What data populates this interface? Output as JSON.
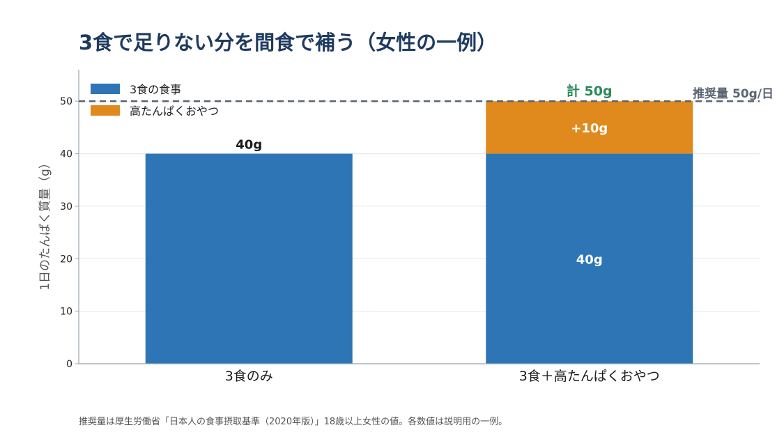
{
  "title": "3食で足りない分を間食で補う（女性の一例）",
  "footnote": "推奨量は厚生労働省「日本人の食事摂取基準（2020年版）」18歳以上女性の値。各数値は説明用の一例。",
  "chart_data": {
    "type": "bar",
    "stacked": true,
    "categories": [
      "3食のみ",
      "3食＋高たんぱくおやつ"
    ],
    "series": [
      {
        "name": "3食の食事",
        "values": [
          40,
          40
        ],
        "color": "#2e75b6"
      },
      {
        "name": "高たんぱくおやつ",
        "values": [
          0,
          10
        ],
        "color": "#e08a1e"
      }
    ],
    "data_labels": {
      "bar1_top": "40g",
      "bar2_base": "40g",
      "bar2_snack": "+10g",
      "bar2_total": "計 50g"
    },
    "reference_line": {
      "value": 50,
      "label": "推奨量 50g/日",
      "color": "#5a6472",
      "style": "dashed"
    },
    "ylabel": "1日のたんぱく質量（g）",
    "ylim": [
      0,
      56
    ],
    "yticks": [
      0,
      10,
      20,
      30,
      40,
      50
    ],
    "grid": true,
    "legend_position": "top-left",
    "total_color": "#2a8a5a"
  }
}
